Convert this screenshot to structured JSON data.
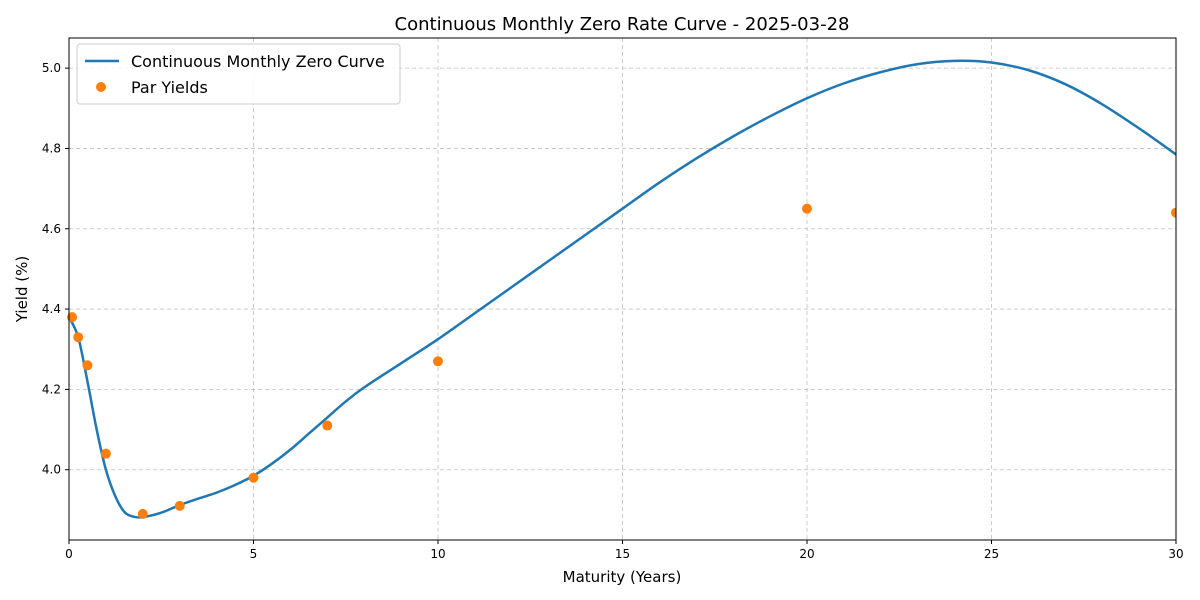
{
  "chart_data": {
    "type": "line",
    "title": "Continuous Monthly Zero Rate Curve - 2025-03-28",
    "xlabel": "Maturity (Years)",
    "ylabel": "Yield (%)",
    "xlim": [
      0,
      30
    ],
    "ylim": [
      3.825,
      5.075
    ],
    "xticks": [
      0,
      5,
      10,
      15,
      20,
      25,
      30
    ],
    "yticks": [
      4.0,
      4.2,
      4.4,
      4.6,
      4.8,
      5.0
    ],
    "grid": true,
    "legend_position": "upper-left",
    "series": [
      {
        "name": "Continuous Monthly Zero Curve",
        "kind": "line",
        "color": "#1f77b4",
        "x": [
          0,
          0.25,
          0.5,
          0.75,
          1,
          1.25,
          1.5,
          1.75,
          2,
          2.5,
          3,
          3.5,
          4,
          4.5,
          5,
          5.5,
          6,
          6.5,
          7,
          7.5,
          8,
          9,
          10,
          11,
          12,
          13,
          14,
          15,
          16,
          17,
          18,
          19,
          20,
          21,
          22,
          23,
          24,
          25,
          26,
          27,
          28,
          29,
          30
        ],
        "values": [
          4.38,
          4.33,
          4.22,
          4.1,
          4.0,
          3.935,
          3.895,
          3.883,
          3.882,
          3.893,
          3.912,
          3.928,
          3.943,
          3.962,
          3.985,
          4.015,
          4.05,
          4.09,
          4.13,
          4.17,
          4.205,
          4.265,
          4.325,
          4.39,
          4.455,
          4.52,
          4.585,
          4.65,
          4.715,
          4.775,
          4.83,
          4.88,
          4.925,
          4.962,
          4.99,
          5.01,
          5.018,
          5.014,
          4.995,
          4.96,
          4.91,
          4.85,
          4.785
        ]
      },
      {
        "name": "Par Yields",
        "kind": "scatter",
        "color": "#ff7f0e",
        "x": [
          0.083,
          0.25,
          0.5,
          1,
          2,
          3,
          5,
          7,
          10,
          20,
          30
        ],
        "values": [
          4.38,
          4.33,
          4.26,
          4.04,
          3.89,
          3.91,
          3.98,
          4.11,
          4.27,
          4.65,
          4.64
        ]
      }
    ]
  }
}
